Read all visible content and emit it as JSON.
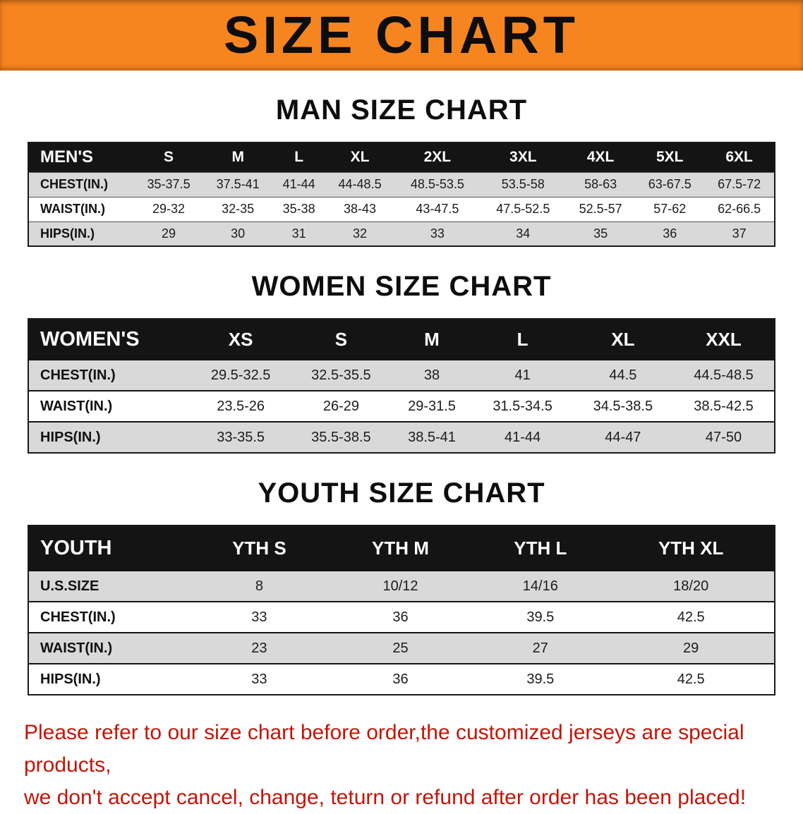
{
  "banner": {
    "title": "SIZE CHART"
  },
  "colors": {
    "banner_bg": "#f6851f",
    "note_text": "#c41507",
    "table_header_bg": "#141414",
    "stripe_row": "#d9d9d9"
  },
  "sections": [
    {
      "id": "men",
      "heading": "MAN SIZE CHART",
      "header_label": "MEN'S",
      "columns": [
        "S",
        "M",
        "L",
        "XL",
        "2XL",
        "3XL",
        "4XL",
        "5XL",
        "6XL"
      ],
      "rows": [
        {
          "label": "CHEST(IN.)",
          "values": [
            "35-37.5",
            "37.5-41",
            "41-44",
            "44-48.5",
            "48.5-53.5",
            "53.5-58",
            "58-63",
            "63-67.5",
            "67.5-72"
          ]
        },
        {
          "label": "WAIST(IN.)",
          "values": [
            "29-32",
            "32-35",
            "35-38",
            "38-43",
            "43-47.5",
            "47.5-52.5",
            "52.5-57",
            "57-62",
            "62-66.5"
          ]
        },
        {
          "label": "HIPS(IN.)",
          "values": [
            "29",
            "30",
            "31",
            "32",
            "33",
            "34",
            "35",
            "36",
            "37"
          ]
        }
      ]
    },
    {
      "id": "women",
      "heading": "WOMEN SIZE CHART",
      "header_label": "WOMEN'S",
      "columns": [
        "XS",
        "S",
        "M",
        "L",
        "XL",
        "XXL"
      ],
      "rows": [
        {
          "label": "CHEST(IN.)",
          "values": [
            "29.5-32.5",
            "32.5-35.5",
            "38",
            "41",
            "44.5",
            "44.5-48.5"
          ]
        },
        {
          "label": "WAIST(IN.)",
          "values": [
            "23.5-26",
            "26-29",
            "29-31.5",
            "31.5-34.5",
            "34.5-38.5",
            "38.5-42.5"
          ]
        },
        {
          "label": "HIPS(IN.)",
          "values": [
            "33-35.5",
            "35.5-38.5",
            "38.5-41",
            "41-44",
            "44-47",
            "47-50"
          ]
        }
      ]
    },
    {
      "id": "youth",
      "heading": "YOUTH SIZE CHART",
      "header_label": "YOUTH",
      "columns": [
        "YTH S",
        "YTH M",
        "YTH L",
        "YTH XL"
      ],
      "rows": [
        {
          "label": "U.S.SIZE",
          "values": [
            "8",
            "10/12",
            "14/16",
            "18/20"
          ]
        },
        {
          "label": "CHEST(IN.)",
          "values": [
            "33",
            "36",
            "39.5",
            "42.5"
          ]
        },
        {
          "label": "WAIST(IN.)",
          "values": [
            "23",
            "25",
            "27",
            "29"
          ]
        },
        {
          "label": "HIPS(IN.)",
          "values": [
            "33",
            "36",
            "39.5",
            "42.5"
          ]
        }
      ]
    }
  ],
  "footer_note": {
    "line1": "Please refer to our size chart before order,the customized jerseys are special products,",
    "line2": "we don't accept cancel, change, teturn or refund after order has been placed!"
  }
}
